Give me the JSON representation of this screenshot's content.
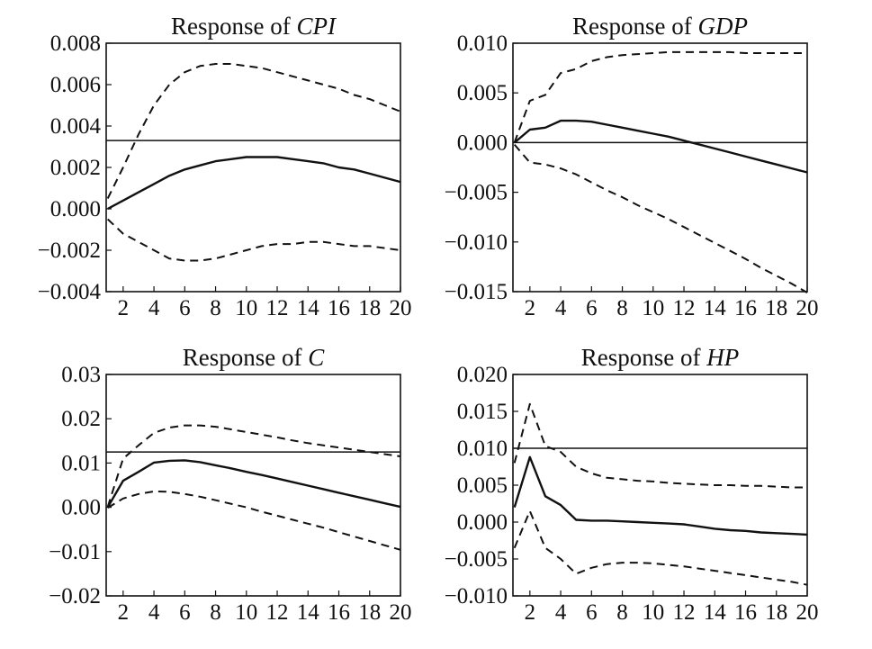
{
  "chart_data": [
    {
      "type": "line",
      "title_prefix": "Response of ",
      "title_var": "CPI",
      "x": [
        1,
        2,
        3,
        4,
        5,
        6,
        7,
        8,
        9,
        10,
        11,
        12,
        13,
        14,
        15,
        16,
        17,
        18,
        19,
        20
      ],
      "xticks": [
        2,
        4,
        6,
        8,
        10,
        12,
        14,
        16,
        18,
        20
      ],
      "xlim": [
        0.9,
        20
      ],
      "ylim": [
        -0.004,
        0.008
      ],
      "yticks": [
        "0.008",
        "0.006",
        "0.004",
        "0.002",
        "0.000",
        "−0.002",
        "−0.004"
      ],
      "ytick_values": [
        0.008,
        0.006,
        0.004,
        0.002,
        0.0,
        -0.002,
        -0.004
      ],
      "reference_line": 0.0033,
      "series": [
        {
          "role": "response",
          "style": "solid",
          "values": [
            0.0,
            0.0004,
            0.0008,
            0.0012,
            0.0016,
            0.0019,
            0.0021,
            0.0023,
            0.0024,
            0.0025,
            0.0025,
            0.0025,
            0.0024,
            0.0023,
            0.0022,
            0.002,
            0.0019,
            0.0017,
            0.0015,
            0.0013
          ]
        },
        {
          "role": "upper",
          "style": "dashed",
          "values": [
            0.0005,
            0.002,
            0.0036,
            0.005,
            0.006,
            0.0066,
            0.0069,
            0.007,
            0.007,
            0.0069,
            0.0068,
            0.0066,
            0.0064,
            0.0062,
            0.006,
            0.0058,
            0.0055,
            0.0053,
            0.005,
            0.0047
          ]
        },
        {
          "role": "lower",
          "style": "dashed",
          "values": [
            -0.0005,
            -0.0012,
            -0.0016,
            -0.002,
            -0.0024,
            -0.0025,
            -0.0025,
            -0.0024,
            -0.0022,
            -0.002,
            -0.0018,
            -0.0017,
            -0.0017,
            -0.0016,
            -0.0016,
            -0.0017,
            -0.0018,
            -0.0018,
            -0.0019,
            -0.002
          ]
        }
      ]
    },
    {
      "type": "line",
      "title_prefix": "Response of ",
      "title_var": "GDP",
      "x": [
        1,
        2,
        3,
        4,
        5,
        6,
        7,
        8,
        9,
        10,
        11,
        12,
        13,
        14,
        15,
        16,
        17,
        18,
        19,
        20
      ],
      "xticks": [
        2,
        4,
        6,
        8,
        10,
        12,
        14,
        16,
        18,
        20
      ],
      "xlim": [
        0.9,
        20
      ],
      "ylim": [
        -0.015,
        0.01
      ],
      "yticks": [
        "0.010",
        "0.005",
        "0.000",
        "−0.005",
        "−0.010",
        "−0.015"
      ],
      "ytick_values": [
        0.01,
        0.005,
        0.0,
        -0.005,
        -0.01,
        -0.015
      ],
      "reference_line": 0.0,
      "series": [
        {
          "role": "response",
          "style": "solid",
          "values": [
            0.0,
            0.0013,
            0.0015,
            0.0022,
            0.0022,
            0.0021,
            0.0018,
            0.0015,
            0.0012,
            0.0009,
            0.0006,
            0.0002,
            -0.0002,
            -0.0006,
            -0.001,
            -0.0014,
            -0.0018,
            -0.0022,
            -0.0026,
            -0.003
          ]
        },
        {
          "role": "upper",
          "style": "dashed",
          "values": [
            0.0,
            0.0042,
            0.0048,
            0.007,
            0.0074,
            0.0082,
            0.0086,
            0.0088,
            0.0089,
            0.009,
            0.0091,
            0.0091,
            0.0091,
            0.0091,
            0.0091,
            0.009,
            0.009,
            0.009,
            0.009,
            0.009
          ]
        },
        {
          "role": "lower",
          "style": "dashed",
          "values": [
            -0.0002,
            -0.002,
            -0.0022,
            -0.0026,
            -0.0032,
            -0.004,
            -0.0048,
            -0.0055,
            -0.0063,
            -0.007,
            -0.0077,
            -0.0085,
            -0.0093,
            -0.0101,
            -0.0109,
            -0.0117,
            -0.0126,
            -0.0134,
            -0.0142,
            -0.0151
          ]
        }
      ]
    },
    {
      "type": "line",
      "title_prefix": "Response of ",
      "title_var": "C",
      "x": [
        1,
        2,
        3,
        4,
        5,
        6,
        7,
        8,
        9,
        10,
        11,
        12,
        13,
        14,
        15,
        16,
        17,
        18,
        19,
        20
      ],
      "xticks": [
        2,
        4,
        6,
        8,
        10,
        12,
        14,
        16,
        18,
        20
      ],
      "xlim": [
        0.9,
        20
      ],
      "ylim": [
        -0.02,
        0.03
      ],
      "yticks": [
        "0.03",
        "0.02",
        "0.01",
        "0.00",
        "−0.01",
        "−0.02"
      ],
      "ytick_values": [
        0.03,
        0.02,
        0.01,
        0.0,
        -0.01,
        -0.02
      ],
      "reference_line": 0.0125,
      "series": [
        {
          "role": "response",
          "style": "solid",
          "values": [
            0.0,
            0.006,
            0.008,
            0.0101,
            0.0105,
            0.0106,
            0.0102,
            0.0095,
            0.0088,
            0.008,
            0.0073,
            0.0065,
            0.0057,
            0.0049,
            0.0041,
            0.0033,
            0.0025,
            0.0017,
            0.0009,
            0.0001
          ]
        },
        {
          "role": "upper",
          "style": "dashed",
          "values": [
            0.0001,
            0.011,
            0.014,
            0.0168,
            0.018,
            0.0185,
            0.0185,
            0.0182,
            0.0176,
            0.017,
            0.0164,
            0.0158,
            0.0151,
            0.0145,
            0.014,
            0.0135,
            0.013,
            0.0125,
            0.012,
            0.0115
          ]
        },
        {
          "role": "lower",
          "style": "dashed",
          "values": [
            -0.0001,
            0.002,
            0.003,
            0.0036,
            0.0035,
            0.003,
            0.0024,
            0.0016,
            0.0008,
            0.0,
            -0.001,
            -0.0019,
            -0.0028,
            -0.0037,
            -0.0046,
            -0.0056,
            -0.0066,
            -0.0076,
            -0.0086,
            -0.0096
          ]
        }
      ]
    },
    {
      "type": "line",
      "title_prefix": "Response of ",
      "title_var": "HP",
      "x": [
        1,
        2,
        3,
        4,
        5,
        6,
        7,
        8,
        9,
        10,
        11,
        12,
        13,
        14,
        15,
        16,
        17,
        18,
        19,
        20
      ],
      "xticks": [
        2,
        4,
        6,
        8,
        10,
        12,
        14,
        16,
        18,
        20
      ],
      "xlim": [
        0.9,
        20
      ],
      "ylim": [
        -0.01,
        0.02
      ],
      "yticks": [
        "0.020",
        "0.015",
        "0.010",
        "0.005",
        "0.000",
        "−0.005",
        "−0.010"
      ],
      "ytick_values": [
        0.02,
        0.015,
        0.01,
        0.005,
        0.0,
        -0.005,
        -0.01
      ],
      "reference_line": 0.01,
      "series": [
        {
          "role": "response",
          "style": "solid",
          "values": [
            0.002,
            0.0088,
            0.0035,
            0.0023,
            0.0003,
            0.0002,
            0.0002,
            0.0001,
            0.0,
            -0.0001,
            -0.0002,
            -0.0003,
            -0.0006,
            -0.0009,
            -0.0011,
            -0.0012,
            -0.0014,
            -0.0015,
            -0.0016,
            -0.0017
          ]
        },
        {
          "role": "upper",
          "style": "dashed",
          "values": [
            0.008,
            0.016,
            0.0103,
            0.0095,
            0.0075,
            0.0066,
            0.006,
            0.0058,
            0.0056,
            0.0055,
            0.0053,
            0.0052,
            0.0051,
            0.005,
            0.005,
            0.0049,
            0.0049,
            0.0048,
            0.0047,
            0.0047
          ]
        },
        {
          "role": "lower",
          "style": "dashed",
          "values": [
            -0.0035,
            0.0015,
            -0.0035,
            -0.005,
            -0.007,
            -0.0062,
            -0.0057,
            -0.0055,
            -0.0055,
            -0.0056,
            -0.0058,
            -0.006,
            -0.0063,
            -0.0066,
            -0.0069,
            -0.0072,
            -0.0075,
            -0.0078,
            -0.0081,
            -0.0085
          ]
        }
      ]
    }
  ]
}
